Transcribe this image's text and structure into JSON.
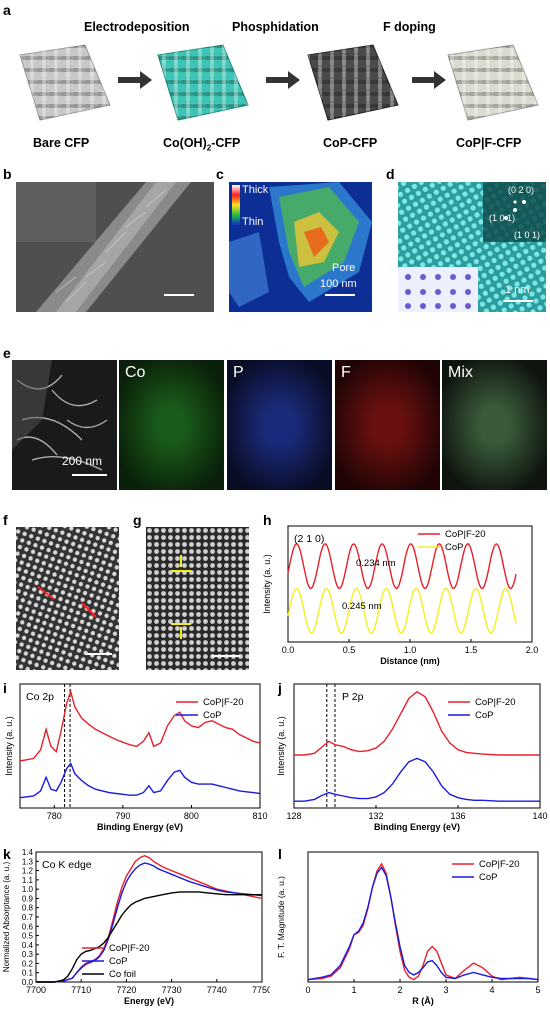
{
  "panel_a": {
    "label": "a",
    "steps": [
      "Electrodeposition",
      "Phosphidation",
      "F doping"
    ],
    "captions": [
      "Bare CFP",
      "Co(OH)",
      "2",
      "-CFP",
      "CoP-CFP",
      "CoP|F-CFP"
    ],
    "colors": [
      "#c8c8c8",
      "#3ec4b4",
      "#4a4a4a",
      "#d9dccf"
    ]
  },
  "panel_b": {
    "label": "b"
  },
  "panel_c": {
    "label": "c",
    "thick": "Thick",
    "thin": "Thin",
    "pore": "Pore",
    "scale": "100 nm"
  },
  "panel_d": {
    "label": "d",
    "spots": [
      "(0 2 0)",
      "(1 0 1)",
      "(1 0 1)"
    ],
    "scale": "1 nm"
  },
  "panel_e": {
    "label": "e",
    "maps": [
      "Co",
      "P",
      "F",
      "Mix"
    ],
    "scale": "200 nm"
  },
  "panel_f": {
    "label": "f"
  },
  "panel_g": {
    "label": "g"
  },
  "panel_h": {
    "label": "h"
  },
  "panel_i": {
    "label": "i"
  },
  "panel_j": {
    "label": "j"
  },
  "panel_k": {
    "label": "k"
  },
  "panel_l": {
    "label": "l"
  },
  "chart_data": [
    {
      "panel": "h",
      "type": "line",
      "annotation": "(2 1 0)",
      "xlabel": "Distance (nm)",
      "ylabel": "Intensity (a. u.)",
      "xlim": [
        0,
        2.0
      ],
      "xticks": [
        "0.0",
        "0.5",
        "1.0",
        "1.5",
        "2.0"
      ],
      "labels": [
        "0.234 nm",
        "0.245 nm"
      ],
      "series": [
        {
          "name": "CoP|F-20",
          "color": "#e8202a",
          "period": 0.234,
          "x_range": [
            0.0,
            1.88
          ],
          "offset": 1.0
        },
        {
          "name": "CoP",
          "color": "#f2f020",
          "period": 0.245,
          "x_range": [
            0.0,
            1.88
          ],
          "offset": 0.0
        }
      ]
    },
    {
      "panel": "i",
      "type": "line",
      "annotation": "Co 2p",
      "xlabel": "Binding Energy (eV)",
      "ylabel": "Intensity (a. u.)",
      "xlim": [
        775,
        810
      ],
      "xticks": [
        "780",
        "790",
        "800",
        "810"
      ],
      "dashed_lines": [
        781.5,
        782.3
      ],
      "series": [
        {
          "name": "CoP|F-20",
          "color": "#e8202a",
          "x": [
            775,
            777,
            778,
            778.8,
            779.5,
            780.3,
            781,
            781.8,
            782.4,
            783,
            784,
            785,
            786,
            787,
            788,
            789,
            790,
            791,
            792,
            793,
            793.8,
            794.5,
            795.5,
            796.5,
            797.5,
            798.3,
            799,
            800,
            801,
            802,
            803,
            804,
            805,
            806,
            807,
            808,
            809,
            810
          ],
          "y": [
            0.55,
            0.58,
            0.68,
            0.92,
            0.72,
            0.66,
            0.9,
            1.22,
            1.36,
            1.18,
            1.05,
            0.98,
            0.92,
            0.88,
            0.84,
            0.8,
            0.77,
            0.74,
            0.72,
            0.78,
            0.88,
            0.72,
            0.76,
            0.96,
            1.08,
            1.12,
            1.02,
            0.96,
            0.94,
            1.0,
            1.02,
            0.98,
            0.94,
            0.92,
            0.86,
            0.82,
            0.78,
            0.76
          ]
        },
        {
          "name": "CoP",
          "color": "#1a1ae0",
          "x": [
            775,
            777,
            778,
            778.8,
            779.5,
            780.3,
            781,
            781.8,
            782.4,
            783,
            784,
            785,
            786,
            787,
            788,
            789,
            790,
            791,
            792,
            793,
            793.8,
            794.5,
            795.5,
            796.5,
            797.5,
            798.3,
            799,
            800,
            801,
            802,
            803,
            804,
            805,
            806,
            807,
            808,
            809,
            810
          ],
          "y": [
            0.12,
            0.14,
            0.2,
            0.36,
            0.22,
            0.2,
            0.3,
            0.46,
            0.52,
            0.4,
            0.32,
            0.26,
            0.22,
            0.2,
            0.18,
            0.17,
            0.16,
            0.15,
            0.15,
            0.18,
            0.26,
            0.18,
            0.2,
            0.32,
            0.42,
            0.44,
            0.36,
            0.3,
            0.28,
            0.28,
            0.28,
            0.26,
            0.24,
            0.22,
            0.2,
            0.19,
            0.18,
            0.17
          ]
        }
      ]
    },
    {
      "panel": "j",
      "type": "line",
      "annotation": "P 2p",
      "xlabel": "Binding Energy (eV)",
      "ylabel": "Intensity (a. u.)",
      "xlim": [
        128,
        140
      ],
      "xticks": [
        "128",
        "132",
        "136",
        "140"
      ],
      "dashed_lines": [
        129.6,
        130.0
      ],
      "series": [
        {
          "name": "CoP|F-20",
          "color": "#e8202a",
          "x": [
            128,
            128.5,
            129,
            129.3,
            129.7,
            130,
            130.4,
            130.8,
            131.2,
            131.6,
            132,
            132.4,
            132.8,
            133.2,
            133.6,
            134,
            134.4,
            134.8,
            135.2,
            135.6,
            136,
            136.4,
            136.8,
            137.2,
            138,
            139,
            140
          ],
          "y": [
            0.62,
            0.62,
            0.64,
            0.7,
            0.78,
            0.74,
            0.72,
            0.68,
            0.66,
            0.67,
            0.7,
            0.78,
            0.92,
            1.1,
            1.28,
            1.36,
            1.3,
            1.12,
            0.9,
            0.76,
            0.68,
            0.65,
            0.64,
            0.63,
            0.62,
            0.62,
            0.62
          ]
        },
        {
          "name": "CoP",
          "color": "#1a1ae0",
          "x": [
            128,
            128.5,
            129,
            129.3,
            129.7,
            130,
            130.4,
            130.8,
            131.2,
            131.6,
            132,
            132.4,
            132.8,
            133.2,
            133.6,
            134,
            134.4,
            134.8,
            135.2,
            135.6,
            136,
            136.4,
            136.8,
            137.2,
            138,
            139,
            140
          ],
          "y": [
            0.08,
            0.08,
            0.1,
            0.14,
            0.18,
            0.16,
            0.14,
            0.12,
            0.11,
            0.11,
            0.13,
            0.18,
            0.28,
            0.42,
            0.54,
            0.58,
            0.54,
            0.42,
            0.26,
            0.16,
            0.12,
            0.1,
            0.09,
            0.09,
            0.08,
            0.08,
            0.08
          ]
        }
      ]
    },
    {
      "panel": "k",
      "type": "line",
      "annotation": "Co K edge",
      "xlabel": "Energy (eV)",
      "ylabel": "Normalized Absorptance (a. u.)",
      "xlim": [
        7700,
        7750
      ],
      "ylim": [
        0.0,
        1.4
      ],
      "xticks": [
        "7700",
        "7710",
        "7720",
        "7730",
        "7740",
        "7750"
      ],
      "yticks": [
        "0.0",
        "0.1",
        "0.2",
        "0.3",
        "0.4",
        "0.5",
        "0.6",
        "0.7",
        "0.8",
        "0.9",
        "1.0",
        "1.1",
        "1.2",
        "1.3",
        "1.4"
      ],
      "series": [
        {
          "name": "CoP|F-20",
          "color": "#e8202a",
          "x": [
            7700,
            7704,
            7706,
            7708,
            7709,
            7710,
            7711,
            7712,
            7713,
            7714,
            7715,
            7716,
            7717,
            7718,
            7719,
            7720,
            7721,
            7722,
            7723,
            7724,
            7725,
            7726,
            7727,
            7728,
            7730,
            7732,
            7734,
            7736,
            7738,
            7740,
            7742,
            7744,
            7746,
            7748,
            7750
          ],
          "y": [
            0.0,
            0.0,
            0.01,
            0.04,
            0.1,
            0.16,
            0.2,
            0.22,
            0.24,
            0.28,
            0.36,
            0.48,
            0.66,
            0.86,
            1.02,
            1.14,
            1.22,
            1.3,
            1.34,
            1.36,
            1.34,
            1.3,
            1.27,
            1.24,
            1.2,
            1.16,
            1.12,
            1.08,
            1.04,
            1.0,
            0.98,
            0.96,
            0.94,
            0.92,
            0.9
          ]
        },
        {
          "name": "CoP",
          "color": "#1a1ae0",
          "x": [
            7700,
            7704,
            7706,
            7708,
            7709,
            7710,
            7711,
            7712,
            7713,
            7714,
            7715,
            7716,
            7717,
            7718,
            7719,
            7720,
            7721,
            7722,
            7723,
            7724,
            7725,
            7726,
            7727,
            7728,
            7730,
            7732,
            7734,
            7736,
            7738,
            7740,
            7742,
            7744,
            7746,
            7748,
            7750
          ],
          "y": [
            0.0,
            0.0,
            0.01,
            0.04,
            0.1,
            0.15,
            0.19,
            0.21,
            0.23,
            0.27,
            0.34,
            0.46,
            0.62,
            0.8,
            0.96,
            1.08,
            1.16,
            1.22,
            1.26,
            1.28,
            1.27,
            1.25,
            1.22,
            1.2,
            1.16,
            1.12,
            1.08,
            1.05,
            1.02,
            0.99,
            0.97,
            0.96,
            0.95,
            0.94,
            0.93
          ]
        },
        {
          "name": "Co foil",
          "color": "#000000",
          "x": [
            7700,
            7704,
            7706,
            7707,
            7708,
            7709,
            7710,
            7711,
            7712,
            7713,
            7714,
            7715,
            7716,
            7717,
            7718,
            7719,
            7720,
            7721,
            7722,
            7723,
            7724,
            7726,
            7728,
            7730,
            7732,
            7734,
            7736,
            7738,
            7740,
            7742,
            7744,
            7746,
            7748,
            7750
          ],
          "y": [
            0.0,
            0.0,
            0.02,
            0.06,
            0.14,
            0.24,
            0.3,
            0.33,
            0.34,
            0.36,
            0.38,
            0.42,
            0.48,
            0.56,
            0.64,
            0.72,
            0.78,
            0.83,
            0.86,
            0.88,
            0.9,
            0.92,
            0.94,
            0.96,
            0.97,
            0.97,
            0.97,
            0.96,
            0.95,
            0.94,
            0.94,
            0.94,
            0.94,
            0.94
          ]
        }
      ]
    },
    {
      "panel": "l",
      "type": "line",
      "xlabel": "R (Å)",
      "ylabel": "F. T. Magnitude (a. u.)",
      "xlim": [
        0,
        5
      ],
      "xticks": [
        "0",
        "1",
        "2",
        "3",
        "4",
        "5"
      ],
      "series": [
        {
          "name": "CoP|F-20",
          "color": "#e8202a",
          "x": [
            0,
            0.3,
            0.5,
            0.7,
            0.9,
            1.0,
            1.1,
            1.2,
            1.3,
            1.4,
            1.5,
            1.6,
            1.7,
            1.8,
            1.9,
            2.0,
            2.1,
            2.2,
            2.3,
            2.4,
            2.5,
            2.6,
            2.7,
            2.8,
            2.9,
            3.0,
            3.2,
            3.4,
            3.6,
            3.8,
            4.0,
            4.2,
            4.4,
            4.6,
            4.8,
            5.0
          ],
          "y": [
            0.02,
            0.03,
            0.05,
            0.12,
            0.28,
            0.4,
            0.42,
            0.48,
            0.62,
            0.8,
            0.94,
            1.0,
            0.92,
            0.72,
            0.48,
            0.26,
            0.1,
            0.04,
            0.02,
            0.05,
            0.14,
            0.26,
            0.3,
            0.26,
            0.16,
            0.06,
            0.03,
            0.1,
            0.16,
            0.12,
            0.05,
            0.02,
            0.03,
            0.04,
            0.03,
            0.02
          ]
        },
        {
          "name": "CoP",
          "color": "#1a1ae0",
          "x": [
            0,
            0.3,
            0.5,
            0.7,
            0.9,
            1.0,
            1.1,
            1.2,
            1.3,
            1.4,
            1.5,
            1.6,
            1.7,
            1.8,
            1.9,
            2.0,
            2.1,
            2.2,
            2.3,
            2.4,
            2.5,
            2.6,
            2.7,
            2.8,
            2.9,
            3.0,
            3.2,
            3.4,
            3.6,
            3.8,
            4.0,
            4.2,
            4.4,
            4.6,
            4.8,
            5.0
          ],
          "y": [
            0.02,
            0.04,
            0.06,
            0.14,
            0.3,
            0.4,
            0.43,
            0.5,
            0.63,
            0.8,
            0.92,
            0.97,
            0.9,
            0.72,
            0.5,
            0.3,
            0.14,
            0.08,
            0.06,
            0.08,
            0.12,
            0.17,
            0.18,
            0.14,
            0.08,
            0.04,
            0.03,
            0.06,
            0.08,
            0.06,
            0.04,
            0.03,
            0.03,
            0.03,
            0.03,
            0.02
          ]
        }
      ]
    }
  ]
}
